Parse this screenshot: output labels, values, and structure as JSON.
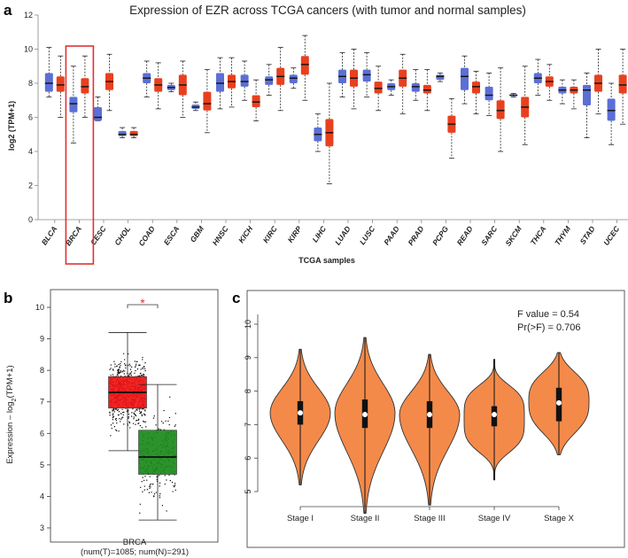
{
  "panels": {
    "a": "a",
    "b": "b",
    "c": "c"
  },
  "chart_data": [
    {
      "type": "box",
      "title": "Expression of EZR across TCGA cancers (with tumor and normal samples)",
      "xlabel": "TCGA samples",
      "ylabel": "log2 (TPM+1)",
      "ylim": [
        0,
        12
      ],
      "yticks": [
        0,
        2,
        4,
        6,
        8,
        10,
        12
      ],
      "highlight_category": "BRCA",
      "colors": {
        "tumor": "#e8401e",
        "normal": "#5b6fd6"
      },
      "categories": [
        "BLCA",
        "BRCA",
        "CESC",
        "CHOL",
        "COAD",
        "ESCA",
        "GBM",
        "HNSC",
        "KICH",
        "KIRC",
        "KIRP",
        "LIHC",
        "LUAD",
        "LUSC",
        "PAAD",
        "PRAD",
        "PCPG",
        "READ",
        "SARC",
        "SKCM",
        "THCA",
        "THYM",
        "STAD",
        "UCEC"
      ],
      "boxes": [
        {
          "cat": "BLCA",
          "group": "normal",
          "min": 7.2,
          "q1": 7.5,
          "median": 8.0,
          "q3": 8.6,
          "max": 10.1
        },
        {
          "cat": "BLCA",
          "group": "tumor",
          "min": 6.0,
          "q1": 7.5,
          "median": 7.9,
          "q3": 8.4,
          "max": 9.6
        },
        {
          "cat": "BRCA",
          "group": "normal",
          "min": 4.5,
          "q1": 6.3,
          "median": 6.8,
          "q3": 7.2,
          "max": 9.0
        },
        {
          "cat": "BRCA",
          "group": "tumor",
          "min": 6.0,
          "q1": 7.4,
          "median": 7.8,
          "q3": 8.3,
          "max": 9.6
        },
        {
          "cat": "CESC",
          "group": "normal",
          "min": 5.8,
          "q1": 5.8,
          "median": 6.0,
          "q3": 6.6,
          "max": 7.2
        },
        {
          "cat": "CESC",
          "group": "tumor",
          "min": 6.4,
          "q1": 7.6,
          "median": 8.1,
          "q3": 8.6,
          "max": 9.7
        },
        {
          "cat": "CHOL",
          "group": "normal",
          "min": 4.8,
          "q1": 4.9,
          "median": 5.0,
          "q3": 5.2,
          "max": 5.4
        },
        {
          "cat": "CHOL",
          "group": "tumor",
          "min": 4.8,
          "q1": 4.9,
          "median": 5.0,
          "q3": 5.2,
          "max": 5.4
        },
        {
          "cat": "COAD",
          "group": "normal",
          "min": 7.2,
          "q1": 8.0,
          "median": 8.3,
          "q3": 8.6,
          "max": 9.3
        },
        {
          "cat": "COAD",
          "group": "tumor",
          "min": 6.5,
          "q1": 7.5,
          "median": 7.9,
          "q3": 8.3,
          "max": 9.2
        },
        {
          "cat": "ESCA",
          "group": "normal",
          "min": 7.5,
          "q1": 7.6,
          "median": 7.75,
          "q3": 7.9,
          "max": 8.0
        },
        {
          "cat": "ESCA",
          "group": "tumor",
          "min": 6.0,
          "q1": 7.3,
          "median": 7.9,
          "q3": 8.5,
          "max": 9.3
        },
        {
          "cat": "GBM",
          "group": "normal",
          "min": 6.4,
          "q1": 6.5,
          "median": 6.6,
          "q3": 6.75,
          "max": 6.9
        },
        {
          "cat": "GBM",
          "group": "tumor",
          "min": 5.1,
          "q1": 6.4,
          "median": 6.8,
          "q3": 7.5,
          "max": 8.8
        },
        {
          "cat": "HNSC",
          "group": "normal",
          "min": 6.5,
          "q1": 7.5,
          "median": 8.0,
          "q3": 8.6,
          "max": 9.5
        },
        {
          "cat": "HNSC",
          "group": "tumor",
          "min": 6.6,
          "q1": 7.7,
          "median": 8.1,
          "q3": 8.5,
          "max": 9.5
        },
        {
          "cat": "KICH",
          "group": "normal",
          "min": 7.0,
          "q1": 7.8,
          "median": 8.1,
          "q3": 8.5,
          "max": 9.3
        },
        {
          "cat": "KICH",
          "group": "tumor",
          "min": 5.8,
          "q1": 6.6,
          "median": 6.9,
          "q3": 7.3,
          "max": 8.2
        },
        {
          "cat": "KIRC",
          "group": "normal",
          "min": 7.3,
          "q1": 7.9,
          "median": 8.2,
          "q3": 8.4,
          "max": 9.1
        },
        {
          "cat": "KIRC",
          "group": "tumor",
          "min": 6.4,
          "q1": 7.9,
          "median": 8.4,
          "q3": 8.9,
          "max": 10.1
        },
        {
          "cat": "KIRP",
          "group": "normal",
          "min": 7.7,
          "q1": 8.0,
          "median": 8.3,
          "q3": 8.5,
          "max": 8.9
        },
        {
          "cat": "KIRP",
          "group": "tumor",
          "min": 7.0,
          "q1": 8.5,
          "median": 9.1,
          "q3": 9.6,
          "max": 10.8
        },
        {
          "cat": "LIHC",
          "group": "normal",
          "min": 4.0,
          "q1": 4.6,
          "median": 5.0,
          "q3": 5.4,
          "max": 6.2
        },
        {
          "cat": "LIHC",
          "group": "tumor",
          "min": 2.1,
          "q1": 4.3,
          "median": 5.1,
          "q3": 5.9,
          "max": 8.0
        },
        {
          "cat": "LUAD",
          "group": "normal",
          "min": 7.2,
          "q1": 8.0,
          "median": 8.4,
          "q3": 8.8,
          "max": 9.8
        },
        {
          "cat": "LUAD",
          "group": "tumor",
          "min": 6.5,
          "q1": 7.8,
          "median": 8.3,
          "q3": 8.8,
          "max": 10.0
        },
        {
          "cat": "LUSC",
          "group": "normal",
          "min": 7.2,
          "q1": 8.1,
          "median": 8.5,
          "q3": 8.8,
          "max": 9.8
        },
        {
          "cat": "LUSC",
          "group": "tumor",
          "min": 6.4,
          "q1": 7.4,
          "median": 7.7,
          "q3": 8.1,
          "max": 9.0
        },
        {
          "cat": "PAAD",
          "group": "normal",
          "min": 7.3,
          "q1": 7.6,
          "median": 7.8,
          "q3": 8.0,
          "max": 8.2
        },
        {
          "cat": "PAAD",
          "group": "tumor",
          "min": 6.2,
          "q1": 7.8,
          "median": 8.3,
          "q3": 8.8,
          "max": 9.7
        },
        {
          "cat": "PRAD",
          "group": "normal",
          "min": 7.0,
          "q1": 7.5,
          "median": 7.8,
          "q3": 8.0,
          "max": 8.8
        },
        {
          "cat": "PRAD",
          "group": "tumor",
          "min": 6.4,
          "q1": 7.4,
          "median": 7.6,
          "q3": 7.9,
          "max": 8.8
        },
        {
          "cat": "PCPG",
          "group": "normal",
          "min": 8.1,
          "q1": 8.2,
          "median": 8.4,
          "q3": 8.5,
          "max": 8.6
        },
        {
          "cat": "PCPG",
          "group": "tumor",
          "min": 3.6,
          "q1": 5.1,
          "median": 5.6,
          "q3": 6.1,
          "max": 7.1
        },
        {
          "cat": "READ",
          "group": "normal",
          "min": 6.8,
          "q1": 7.6,
          "median": 8.4,
          "q3": 8.9,
          "max": 9.6
        },
        {
          "cat": "READ",
          "group": "tumor",
          "min": 6.2,
          "q1": 7.4,
          "median": 7.8,
          "q3": 8.1,
          "max": 8.7
        },
        {
          "cat": "SARC",
          "group": "normal",
          "min": 6.1,
          "q1": 7.0,
          "median": 7.3,
          "q3": 7.8,
          "max": 8.6
        },
        {
          "cat": "SARC",
          "group": "tumor",
          "min": 4.0,
          "q1": 5.9,
          "median": 6.4,
          "q3": 7.0,
          "max": 8.9
        },
        {
          "cat": "SKCM",
          "group": "normal",
          "min": 7.2,
          "q1": 7.25,
          "median": 7.3,
          "q3": 7.35,
          "max": 7.4
        },
        {
          "cat": "SKCM",
          "group": "tumor",
          "min": 4.4,
          "q1": 6.0,
          "median": 6.6,
          "q3": 7.2,
          "max": 9.0
        },
        {
          "cat": "THCA",
          "group": "normal",
          "min": 7.3,
          "q1": 8.0,
          "median": 8.3,
          "q3": 8.6,
          "max": 9.4
        },
        {
          "cat": "THCA",
          "group": "tumor",
          "min": 7.0,
          "q1": 7.8,
          "median": 8.1,
          "q3": 8.4,
          "max": 9.1
        },
        {
          "cat": "THYM",
          "group": "normal",
          "min": 6.8,
          "q1": 7.4,
          "median": 7.6,
          "q3": 7.8,
          "max": 8.2
        },
        {
          "cat": "THYM",
          "group": "tumor",
          "min": 6.5,
          "q1": 7.4,
          "median": 7.6,
          "q3": 7.8,
          "max": 8.2
        },
        {
          "cat": "STAD",
          "group": "normal",
          "min": 4.8,
          "q1": 6.7,
          "median": 7.6,
          "q3": 7.9,
          "max": 8.6
        },
        {
          "cat": "STAD",
          "group": "tumor",
          "min": 6.2,
          "q1": 7.5,
          "median": 8.0,
          "q3": 8.5,
          "max": 10.0
        },
        {
          "cat": "UCEC",
          "group": "normal",
          "min": 4.4,
          "q1": 5.8,
          "median": 6.4,
          "q3": 7.1,
          "max": 8.0
        },
        {
          "cat": "UCEC",
          "group": "tumor",
          "min": 5.6,
          "q1": 7.4,
          "median": 7.9,
          "q3": 8.5,
          "max": 10.0
        }
      ]
    },
    {
      "type": "box",
      "ylabel_prefix": "Expression – log",
      "ylabel_sub": "2",
      "ylabel_suffix": "(TPM+1)",
      "ylim": [
        3,
        10
      ],
      "yticks": [
        3,
        4,
        5,
        6,
        7,
        8,
        9,
        10
      ],
      "category": "BRCA",
      "sample_counts": "(num(T)=1085; num(N)=291)",
      "significance": "*",
      "boxes": [
        {
          "group": "Tumor",
          "color": "#f01414",
          "min": 5.45,
          "q1": 6.8,
          "median": 7.3,
          "q3": 7.8,
          "max": 9.2,
          "n": 1085,
          "point_min": 4.3,
          "point_max": 9.5
        },
        {
          "group": "Normal",
          "color": "#1a8a1a",
          "min": 3.25,
          "q1": 4.7,
          "median": 5.25,
          "q3": 6.1,
          "max": 7.55,
          "n": 291,
          "point_min": 3.3,
          "point_max": 7.6
        }
      ]
    },
    {
      "type": "violin",
      "ylim": [
        4.3,
        10.3
      ],
      "yticks": [
        5,
        6,
        7,
        8,
        9,
        10
      ],
      "color": "#f48a4a",
      "stats_lines": [
        "F value = 0.54",
        "Pr(>F) = 0.706"
      ],
      "categories": [
        "Stage I",
        "Stage II",
        "Stage III",
        "Stage IV",
        "Stage X"
      ],
      "violins": [
        {
          "stage": "Stage I",
          "min": 5.2,
          "q1": 7.0,
          "median": 7.35,
          "q3": 7.7,
          "max": 9.25,
          "mode": 7.35
        },
        {
          "stage": "Stage II",
          "min": 4.35,
          "q1": 6.9,
          "median": 7.3,
          "q3": 7.75,
          "max": 9.6,
          "mode": 7.35
        },
        {
          "stage": "Stage III",
          "min": 4.6,
          "q1": 6.9,
          "median": 7.3,
          "q3": 7.7,
          "max": 9.1,
          "mode": 7.3
        },
        {
          "stage": "Stage IV",
          "min": 5.35,
          "q1": 6.95,
          "median": 7.3,
          "q3": 7.55,
          "max": 8.95,
          "mode": 7.2
        },
        {
          "stage": "Stage X",
          "min": 6.1,
          "q1": 7.1,
          "median": 7.65,
          "q3": 8.1,
          "max": 9.15,
          "mode": 7.7
        }
      ]
    }
  ]
}
